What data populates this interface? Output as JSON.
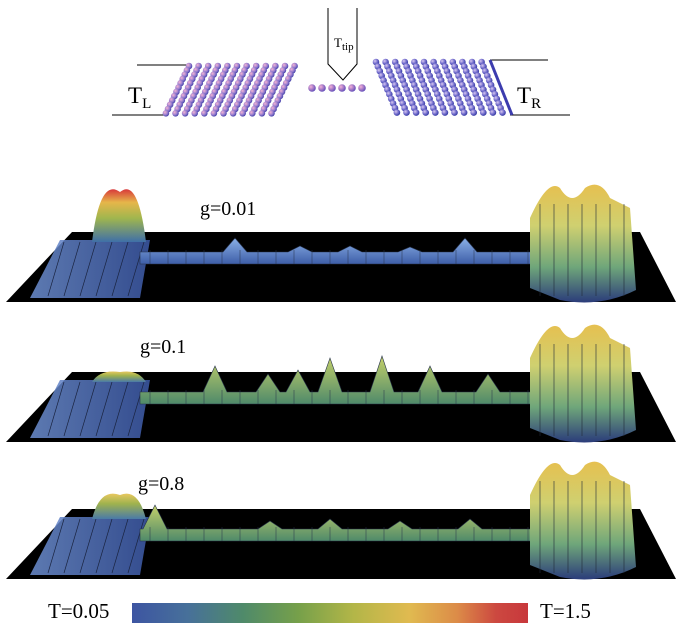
{
  "schematic": {
    "left_reservoir": {
      "main": "T",
      "sub": "L"
    },
    "right_reservoir": {
      "main": "T",
      "sub": "R"
    },
    "tip": {
      "main": "T",
      "sub": "tip"
    }
  },
  "panels": [
    {
      "label": "g=0.01"
    },
    {
      "label": "g=0.1"
    },
    {
      "label": "g=0.8"
    }
  ],
  "colorbar": {
    "min_label": "T=0.05",
    "max_label": "T=1.5",
    "colors": [
      "#3d55a2",
      "#47709a",
      "#4f8a6a",
      "#76a04a",
      "#b3b648",
      "#e0ba50",
      "#dc8c48",
      "#cc4840",
      "#c8383c"
    ]
  }
}
